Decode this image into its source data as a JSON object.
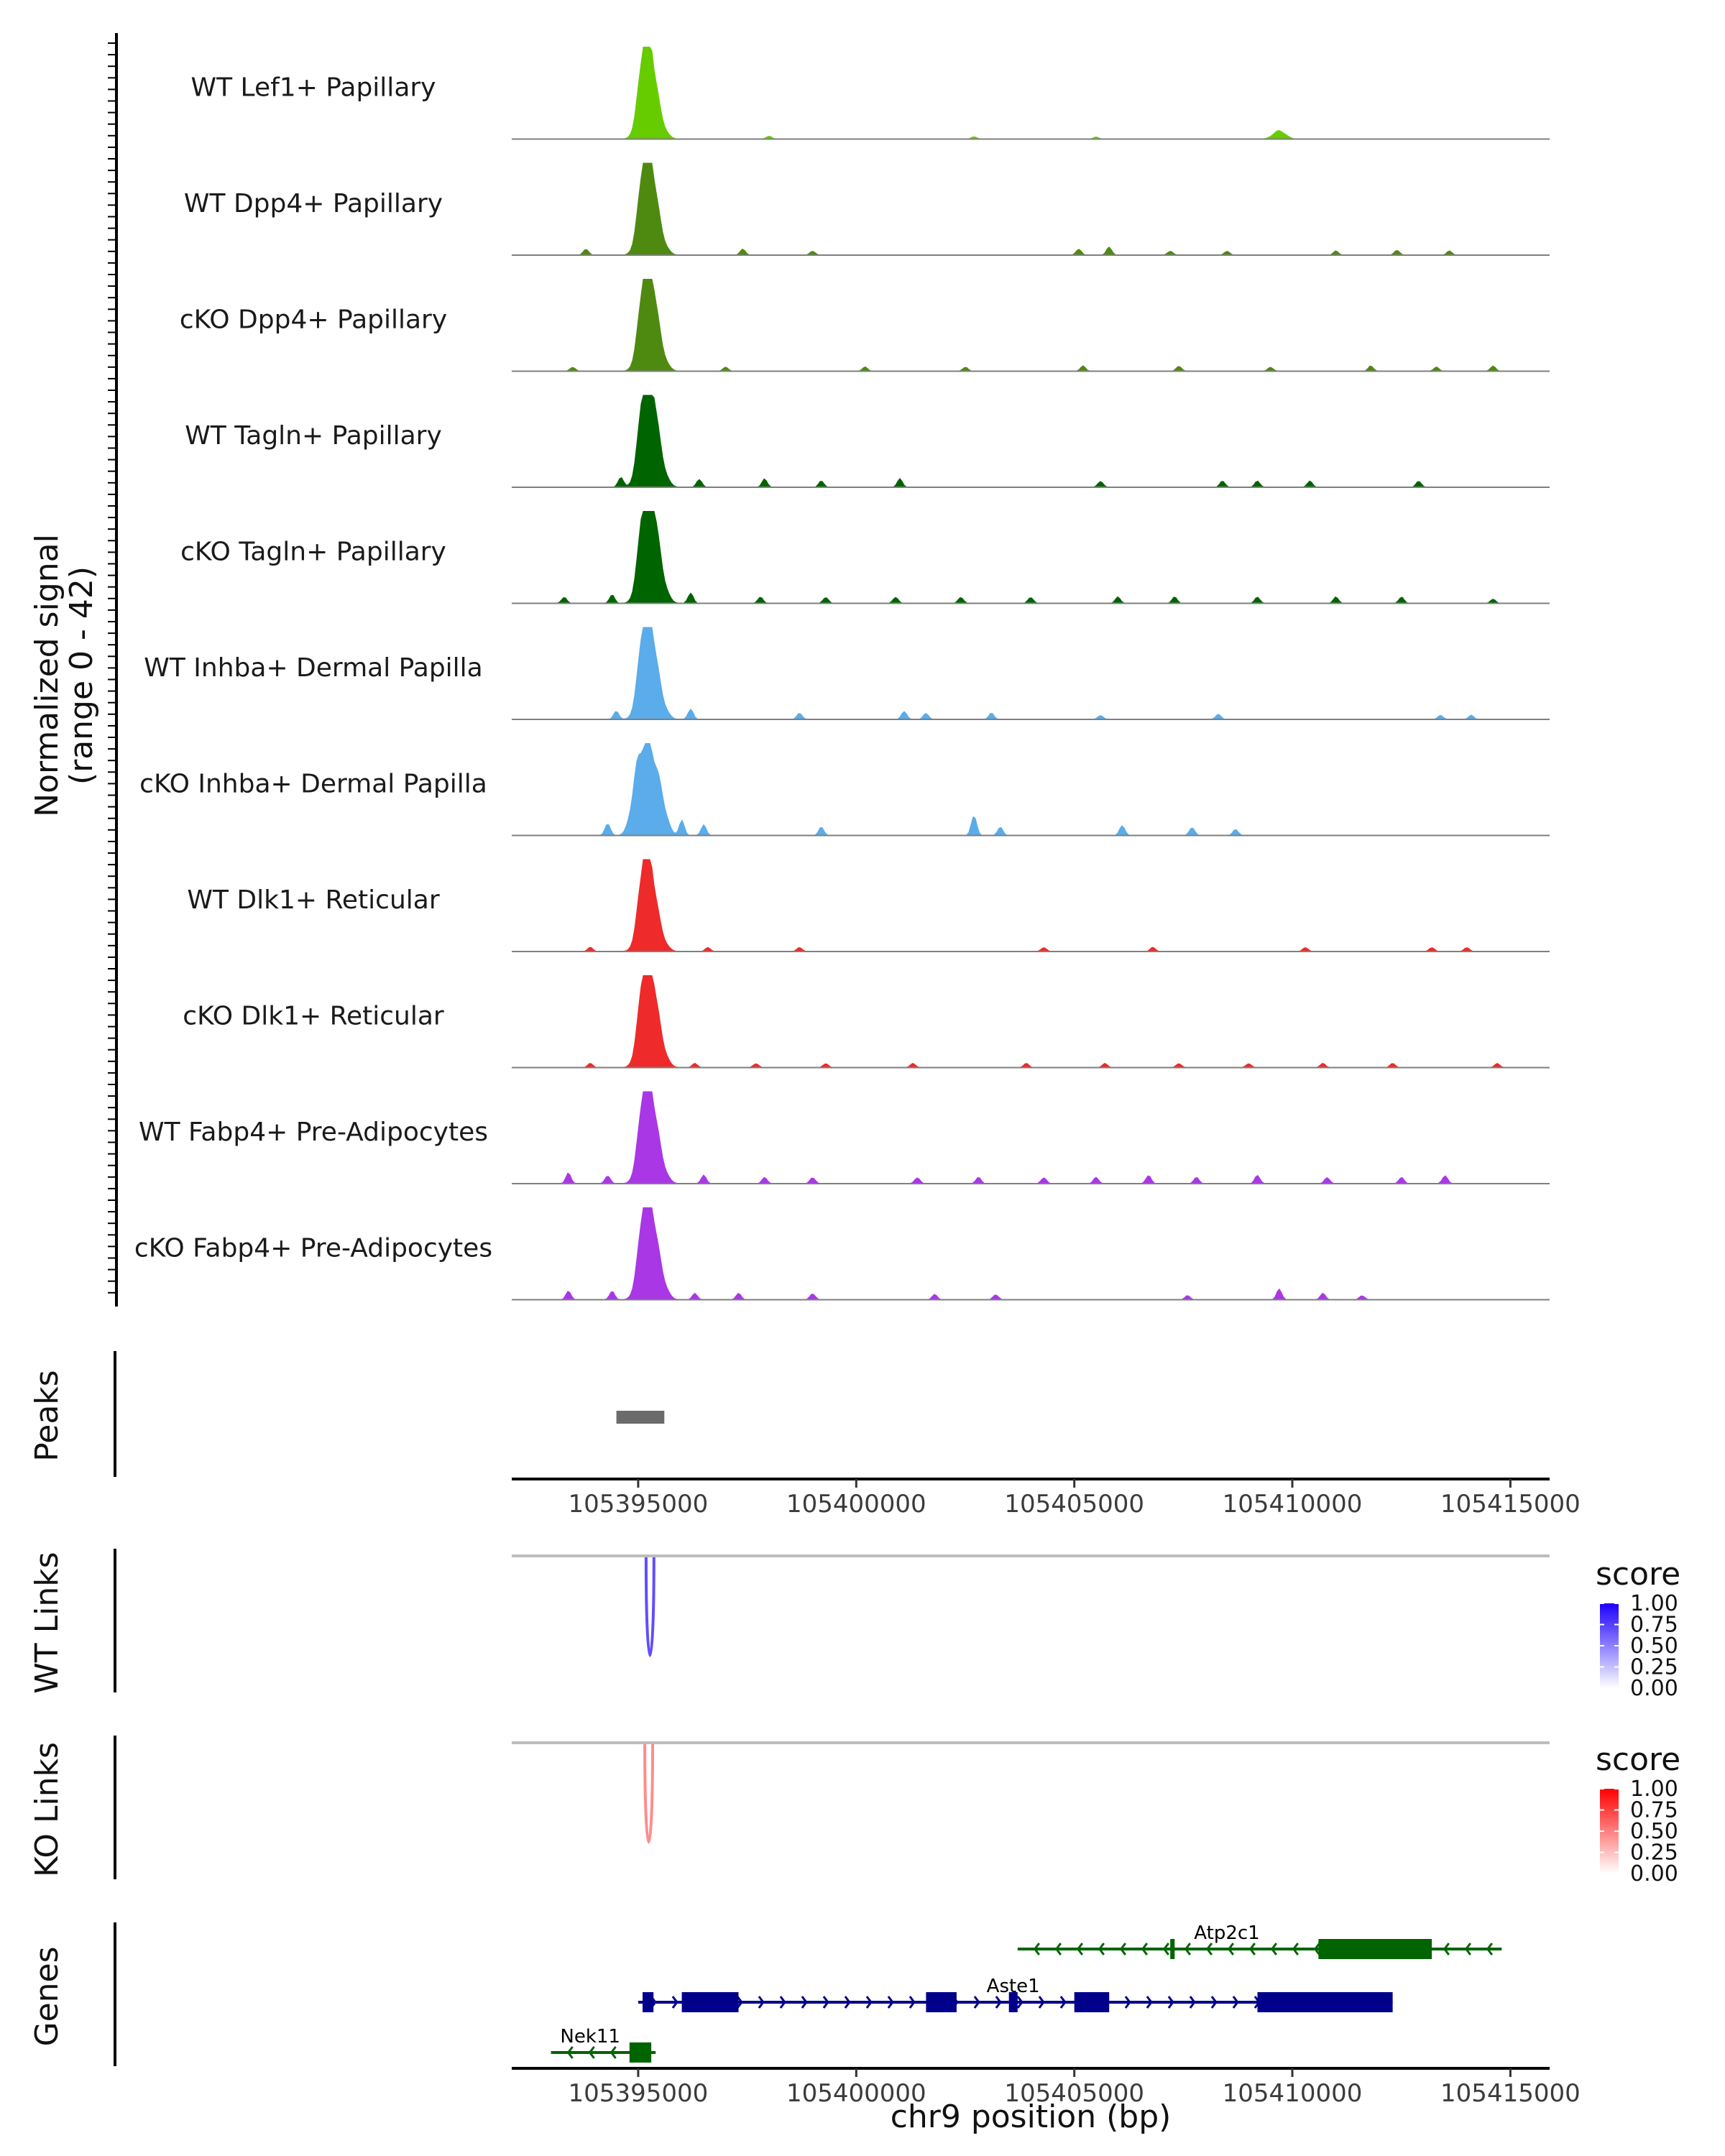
{
  "chart_data": {
    "type": "area",
    "title": "",
    "chromosome": "chr9",
    "xlabel": "chr9 position (bp)",
    "xlim": [
      105392100,
      105415900
    ],
    "x_ticks": [
      "105395000",
      "105400000",
      "105405000",
      "105410000",
      "105415000"
    ],
    "x_tick_values": [
      105395000,
      105400000,
      105405000,
      105410000,
      105415000
    ],
    "coverage": {
      "ylabel_line1": "Normalized signal",
      "ylabel_line2": "(range 0 - 42)",
      "ylim": [
        0,
        42
      ],
      "tracks": [
        {
          "name": "WT Lef1+ Papillary",
          "color": "#66cc00",
          "peaks": [
            [
              105395150,
              40
            ],
            [
              105395300,
              22
            ],
            [
              105395500,
              6
            ],
            [
              105409700,
              4
            ]
          ],
          "noise": [
            [
              105398000,
              1.5
            ],
            [
              105402700,
              1.2
            ],
            [
              105405500,
              1.0
            ]
          ]
        },
        {
          "name": "WT Dpp4+ Papillary",
          "color": "#4f8a10",
          "peaks": [
            [
              105395150,
              40
            ],
            [
              105395300,
              25
            ],
            [
              105395500,
              7
            ]
          ],
          "noise": [
            [
              105393800,
              3
            ],
            [
              105397400,
              3
            ],
            [
              105399000,
              2
            ],
            [
              105405100,
              3
            ],
            [
              105405800,
              4
            ],
            [
              105407200,
              2
            ],
            [
              105408500,
              2
            ],
            [
              105411000,
              2
            ],
            [
              105412400,
              2.5
            ],
            [
              105413600,
              2
            ]
          ]
        },
        {
          "name": "cKO Dpp4+ Papillary",
          "color": "#4f8a10",
          "peaks": [
            [
              105395150,
              38
            ],
            [
              105395300,
              28
            ],
            [
              105395500,
              8
            ]
          ],
          "noise": [
            [
              105393500,
              2
            ],
            [
              105397000,
              2
            ],
            [
              105400200,
              2
            ],
            [
              105402500,
              2
            ],
            [
              105405200,
              2.5
            ],
            [
              105407400,
              2.5
            ],
            [
              105409500,
              2
            ],
            [
              105411800,
              2.5
            ],
            [
              105413300,
              2
            ],
            [
              105414600,
              2.5
            ]
          ]
        },
        {
          "name": "WT Tagln+ Papillary",
          "color": "#006400",
          "peaks": [
            [
              105395150,
              42
            ],
            [
              105395300,
              30
            ],
            [
              105395500,
              10
            ]
          ],
          "noise": [
            [
              105394600,
              5
            ],
            [
              105396400,
              4
            ],
            [
              105397900,
              4
            ],
            [
              105399200,
              3
            ],
            [
              105401000,
              4
            ],
            [
              105405600,
              3
            ],
            [
              105408400,
              3
            ],
            [
              105409200,
              3
            ],
            [
              105410400,
              3
            ],
            [
              105412900,
              3
            ]
          ]
        },
        {
          "name": "cKO Tagln+ Papillary",
          "color": "#006400",
          "peaks": [
            [
              105395150,
              42
            ],
            [
              105395300,
              32
            ],
            [
              105395500,
              12
            ]
          ],
          "noise": [
            [
              105393300,
              3
            ],
            [
              105394400,
              4
            ],
            [
              105396200,
              5
            ],
            [
              105397800,
              3
            ],
            [
              105399300,
              3
            ],
            [
              105400900,
              3
            ],
            [
              105402400,
              3
            ],
            [
              105404000,
              3
            ],
            [
              105406000,
              3
            ],
            [
              105407300,
              3
            ],
            [
              105409200,
              3
            ],
            [
              105411000,
              3
            ],
            [
              105412500,
              3
            ],
            [
              105414600,
              2
            ]
          ]
        },
        {
          "name": "WT Inhba+ Dermal Papilla",
          "color": "#5aacea",
          "peaks": [
            [
              105395150,
              42
            ],
            [
              105395300,
              24
            ],
            [
              105395500,
              8
            ]
          ],
          "noise": [
            [
              105394500,
              4
            ],
            [
              105396200,
              5
            ],
            [
              105398700,
              3
            ],
            [
              105401100,
              4
            ],
            [
              105401600,
              3
            ],
            [
              105403100,
              3
            ],
            [
              105405600,
              2
            ],
            [
              105408300,
              2.5
            ],
            [
              105413400,
              2
            ],
            [
              105414100,
              2
            ]
          ]
        },
        {
          "name": "cKO Inhba+ Dermal Papilla",
          "color": "#5aacea",
          "peaks": [
            [
              105395000,
              30
            ],
            [
              105395250,
              36
            ],
            [
              105395500,
              18
            ]
          ],
          "noise": [
            [
              105394300,
              6
            ],
            [
              105396000,
              7
            ],
            [
              105396500,
              5
            ],
            [
              105399200,
              4
            ],
            [
              105402700,
              10
            ],
            [
              105403300,
              4
            ],
            [
              105406100,
              5
            ],
            [
              105407700,
              4
            ],
            [
              105408700,
              3
            ]
          ]
        },
        {
          "name": "WT Dlk1+ Reticular",
          "color": "#ee2a2a",
          "peaks": [
            [
              105395150,
              40
            ],
            [
              105395300,
              20
            ],
            [
              105395500,
              6
            ]
          ],
          "noise": [
            [
              105393900,
              2
            ],
            [
              105396600,
              2
            ],
            [
              105398700,
              2
            ],
            [
              105404300,
              2
            ],
            [
              105406800,
              2
            ],
            [
              105410300,
              2
            ],
            [
              105413200,
              2
            ],
            [
              105414000,
              2
            ]
          ]
        },
        {
          "name": "cKO Dlk1+ Reticular",
          "color": "#ee2a2a",
          "peaks": [
            [
              105395150,
              42
            ],
            [
              105395300,
              26
            ],
            [
              105395500,
              10
            ]
          ],
          "noise": [
            [
              105393900,
              2
            ],
            [
              105396300,
              2
            ],
            [
              105397700,
              2
            ],
            [
              105399300,
              2
            ],
            [
              105401300,
              2
            ],
            [
              105403900,
              2
            ],
            [
              105405700,
              2
            ],
            [
              105407400,
              2
            ],
            [
              105409000,
              2
            ],
            [
              105410700,
              2
            ],
            [
              105412300,
              2
            ],
            [
              105414700,
              2
            ]
          ]
        },
        {
          "name": "WT Fabp4+ Pre-Adipocytes",
          "color": "#a937e6",
          "peaks": [
            [
              105395150,
              40
            ],
            [
              105395300,
              24
            ],
            [
              105395500,
              9
            ]
          ],
          "noise": [
            [
              105393400,
              5
            ],
            [
              105394300,
              4
            ],
            [
              105396500,
              4
            ],
            [
              105397900,
              3
            ],
            [
              105399000,
              3
            ],
            [
              105401400,
              3
            ],
            [
              105402800,
              3
            ],
            [
              105404300,
              3
            ],
            [
              105405500,
              3
            ],
            [
              105406700,
              4
            ],
            [
              105407800,
              3
            ],
            [
              105409200,
              4
            ],
            [
              105410800,
              3
            ],
            [
              105412500,
              3
            ],
            [
              105413500,
              4
            ]
          ]
        },
        {
          "name": "cKO Fabp4+ Pre-Adipocytes",
          "color": "#a937e6",
          "peaks": [
            [
              105395150,
              40
            ],
            [
              105395300,
              24
            ],
            [
              105395500,
              10
            ]
          ],
          "noise": [
            [
              105393400,
              4
            ],
            [
              105394400,
              4
            ],
            [
              105396300,
              3
            ],
            [
              105397300,
              3
            ],
            [
              105399000,
              3
            ],
            [
              105401800,
              2.5
            ],
            [
              105403200,
              2.5
            ],
            [
              105407600,
              2
            ],
            [
              105409700,
              5
            ],
            [
              105410700,
              3
            ],
            [
              105411600,
              2
            ]
          ]
        }
      ]
    },
    "peaks_track": {
      "label": "Peaks",
      "regions": [
        [
          105394500,
          105395600
        ]
      ]
    },
    "wt_links": {
      "label": "WT Links",
      "links": [
        {
          "start": 105395180,
          "end": 105395360,
          "score": 0.7
        }
      ],
      "legend": {
        "title": "score",
        "ticks": [
          "1.00",
          "0.75",
          "0.50",
          "0.25",
          "0.00"
        ],
        "low": "#ffffff",
        "high": "#1c00ff"
      }
    },
    "ko_links": {
      "label": "KO Links",
      "links": [
        {
          "start": 105395150,
          "end": 105395330,
          "score": 0.45
        }
      ],
      "legend": {
        "title": "score",
        "ticks": [
          "1.00",
          "0.75",
          "0.50",
          "0.25",
          "0.00"
        ],
        "low": "#ffffff",
        "high": "#ff0000"
      }
    },
    "genes": {
      "label": "Genes",
      "items": [
        {
          "name": "Atp2c1",
          "strand": "-",
          "color": "#006400",
          "start": 105403700,
          "end": 105414800,
          "exons": [
            [
              105410600,
              105413200
            ],
            [
              105407200,
              105407300
            ]
          ]
        },
        {
          "name": "Aste1",
          "strand": "+",
          "color": "#00008b",
          "start": 105395000,
          "end": 105412300,
          "exons": [
            [
              105395100,
              105395350
            ],
            [
              105396000,
              105397300
            ],
            [
              105401600,
              105402300
            ],
            [
              105403500,
              105403700
            ],
            [
              105405000,
              105405800
            ],
            [
              105409200,
              105412300
            ]
          ]
        },
        {
          "name": "Nek11",
          "strand": "-",
          "color": "#006400",
          "start": 105393000,
          "end": 105395400,
          "exons": [
            [
              105394800,
              105395300
            ]
          ]
        }
      ]
    }
  }
}
